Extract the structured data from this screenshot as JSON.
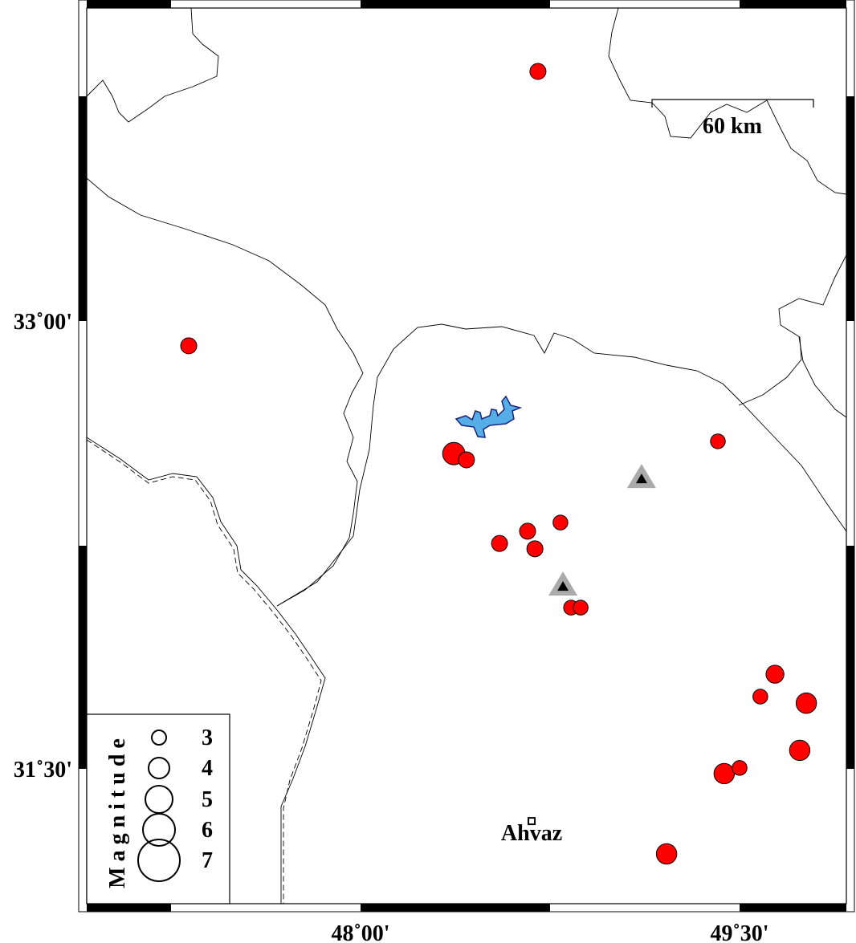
{
  "map": {
    "region": {
      "lon_min": 46.916,
      "lon_max": 49.92,
      "lat_min": 31.05,
      "lat_max": 34.05
    },
    "x_tick_labels": [
      {
        "lon": 48.0,
        "label": "48˚00'"
      },
      {
        "lon": 49.5,
        "label": "49˚30'"
      }
    ],
    "y_tick_labels": [
      {
        "lat": 33.0,
        "label": "33˚00'"
      },
      {
        "lat": 31.5,
        "label": "31˚30'"
      }
    ],
    "scale_bar": {
      "label": "60 km",
      "length_km": 60
    },
    "colors": {
      "event": "#ff0000",
      "lake": "#55aee6",
      "volcano": "#aaaaaa"
    },
    "events": [
      {
        "lon": 48.702,
        "lat": 33.836,
        "mag": 3.0
      },
      {
        "lon": 47.32,
        "lat": 32.917,
        "mag": 3.0
      },
      {
        "lon": 48.369,
        "lat": 32.556,
        "mag": 4.0
      },
      {
        "lon": 48.419,
        "lat": 32.535,
        "mag": 3.0
      },
      {
        "lon": 49.414,
        "lat": 32.597,
        "mag": 2.8
      },
      {
        "lon": 48.791,
        "lat": 32.325,
        "mag": 2.8
      },
      {
        "lon": 48.661,
        "lat": 32.296,
        "mag": 3.0
      },
      {
        "lon": 48.55,
        "lat": 32.255,
        "mag": 3.0
      },
      {
        "lon": 48.69,
        "lat": 32.237,
        "mag": 3.0
      },
      {
        "lon": 48.833,
        "lat": 32.04,
        "mag": 2.8
      },
      {
        "lon": 48.871,
        "lat": 32.04,
        "mag": 2.8
      },
      {
        "lon": 49.64,
        "lat": 31.817,
        "mag": 3.3
      },
      {
        "lon": 49.582,
        "lat": 31.742,
        "mag": 2.8
      },
      {
        "lon": 49.764,
        "lat": 31.72,
        "mag": 3.7
      },
      {
        "lon": 49.738,
        "lat": 31.562,
        "mag": 3.7
      },
      {
        "lon": 49.439,
        "lat": 31.484,
        "mag": 3.7
      },
      {
        "lon": 49.5,
        "lat": 31.503,
        "mag": 2.8
      },
      {
        "lon": 49.211,
        "lat": 31.215,
        "mag": 3.7
      }
    ],
    "volcanoes": [
      {
        "lon": 49.112,
        "lat": 32.47
      },
      {
        "lon": 48.801,
        "lat": 32.11
      }
    ],
    "cities": [
      {
        "name": "Ahvaz",
        "lon": 48.677,
        "lat": 31.325
      }
    ],
    "legend": {
      "title": "Magnitude",
      "magnitudes": [
        3,
        4,
        5,
        6,
        7
      ],
      "labels": [
        "3",
        "4",
        "5",
        "6",
        "7"
      ]
    }
  }
}
